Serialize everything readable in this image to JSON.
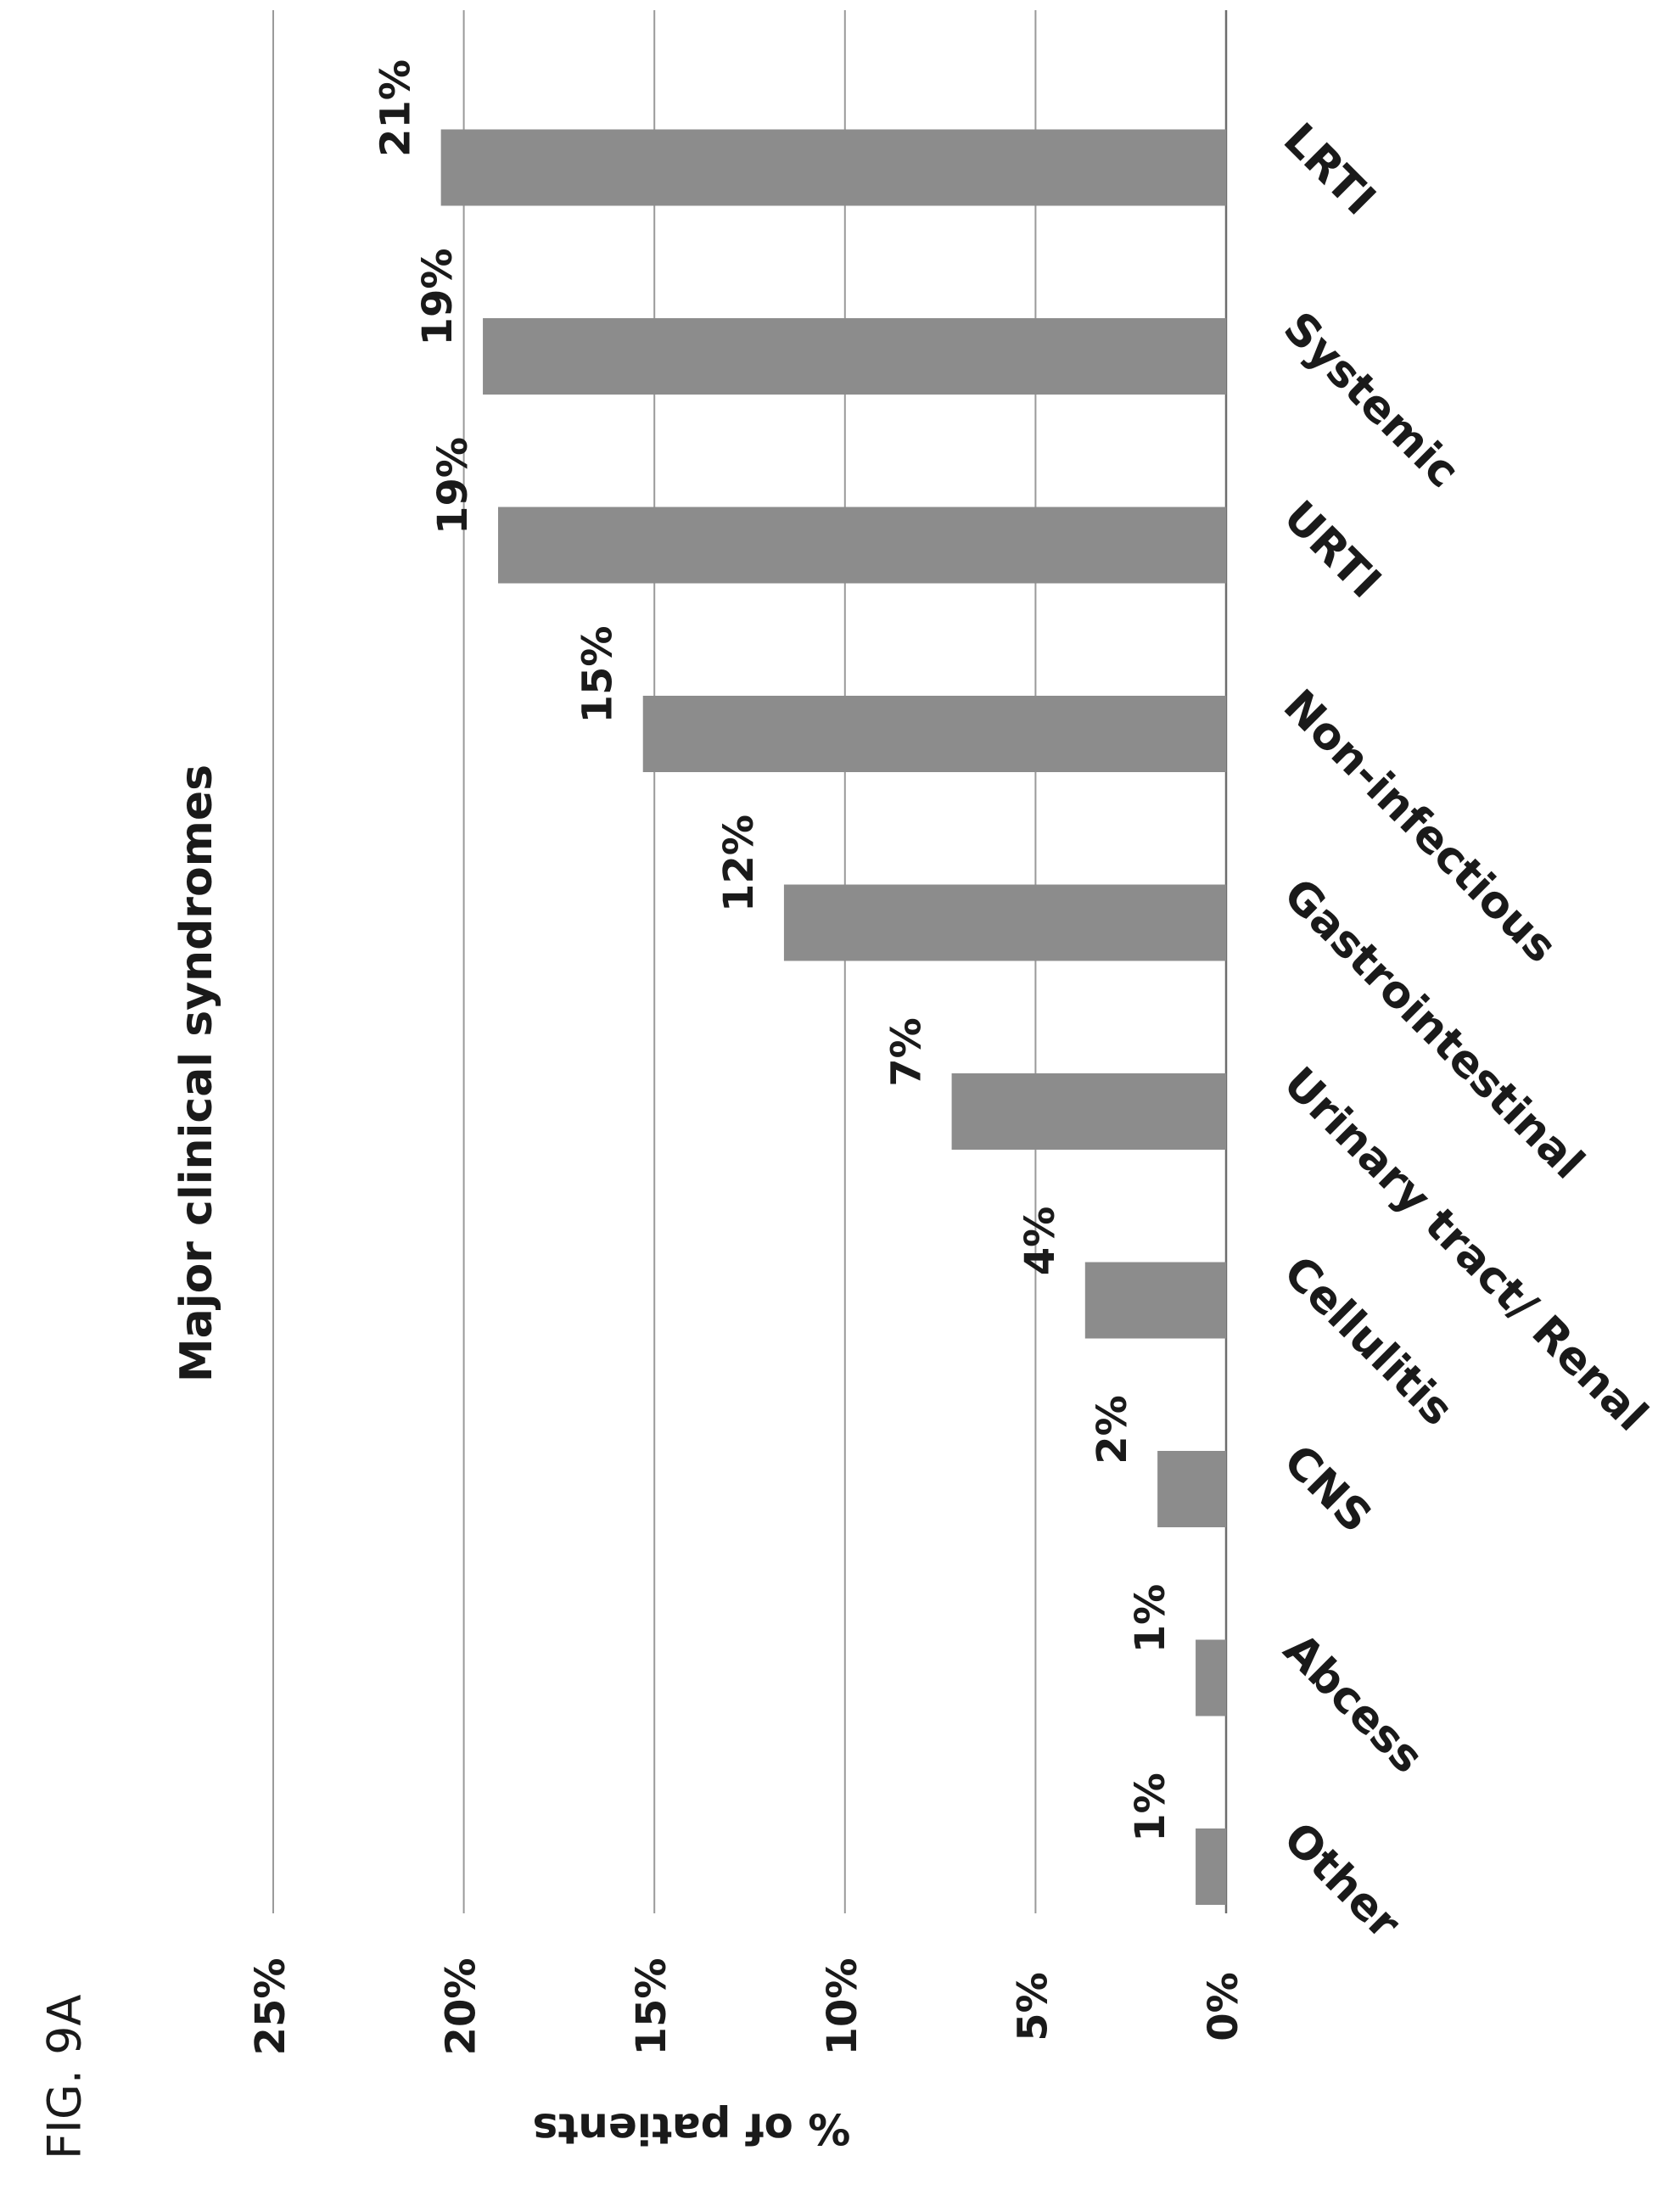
{
  "figure_label": "FIG. 9A",
  "chart_data": {
    "type": "bar",
    "orientation": "vertical, page rotated 90 degrees clockwise",
    "title": "Major clinical syndromes",
    "xlabel": "",
    "ylabel": "% of patients",
    "categories": [
      "Other",
      "Abcess",
      "CNS",
      "Cellulitis",
      "Urinary tract/ Renal",
      "Gastrointestinal",
      "Non-infectious",
      "URTI",
      "Systemic",
      "LRTI"
    ],
    "values": [
      1,
      1,
      2,
      4,
      7,
      12,
      15,
      19,
      19,
      21
    ],
    "bar_lengths": [
      0.8,
      0.8,
      1.8,
      3.7,
      7.2,
      11.6,
      15.3,
      19.1,
      19.5,
      20.6
    ],
    "value_labels": [
      "1%",
      "1%",
      "2%",
      "4%",
      "7%",
      "12%",
      "15%",
      "19%",
      "19%",
      "21%"
    ],
    "y_ticks": [
      0,
      5,
      10,
      15,
      20,
      25
    ],
    "y_tick_labels": [
      "0%",
      "5%",
      "10%",
      "15%",
      "20%",
      "25%"
    ],
    "ylim": [
      0,
      25
    ],
    "grid": true,
    "legend": "none",
    "bar_color": "#8c8c8c"
  }
}
